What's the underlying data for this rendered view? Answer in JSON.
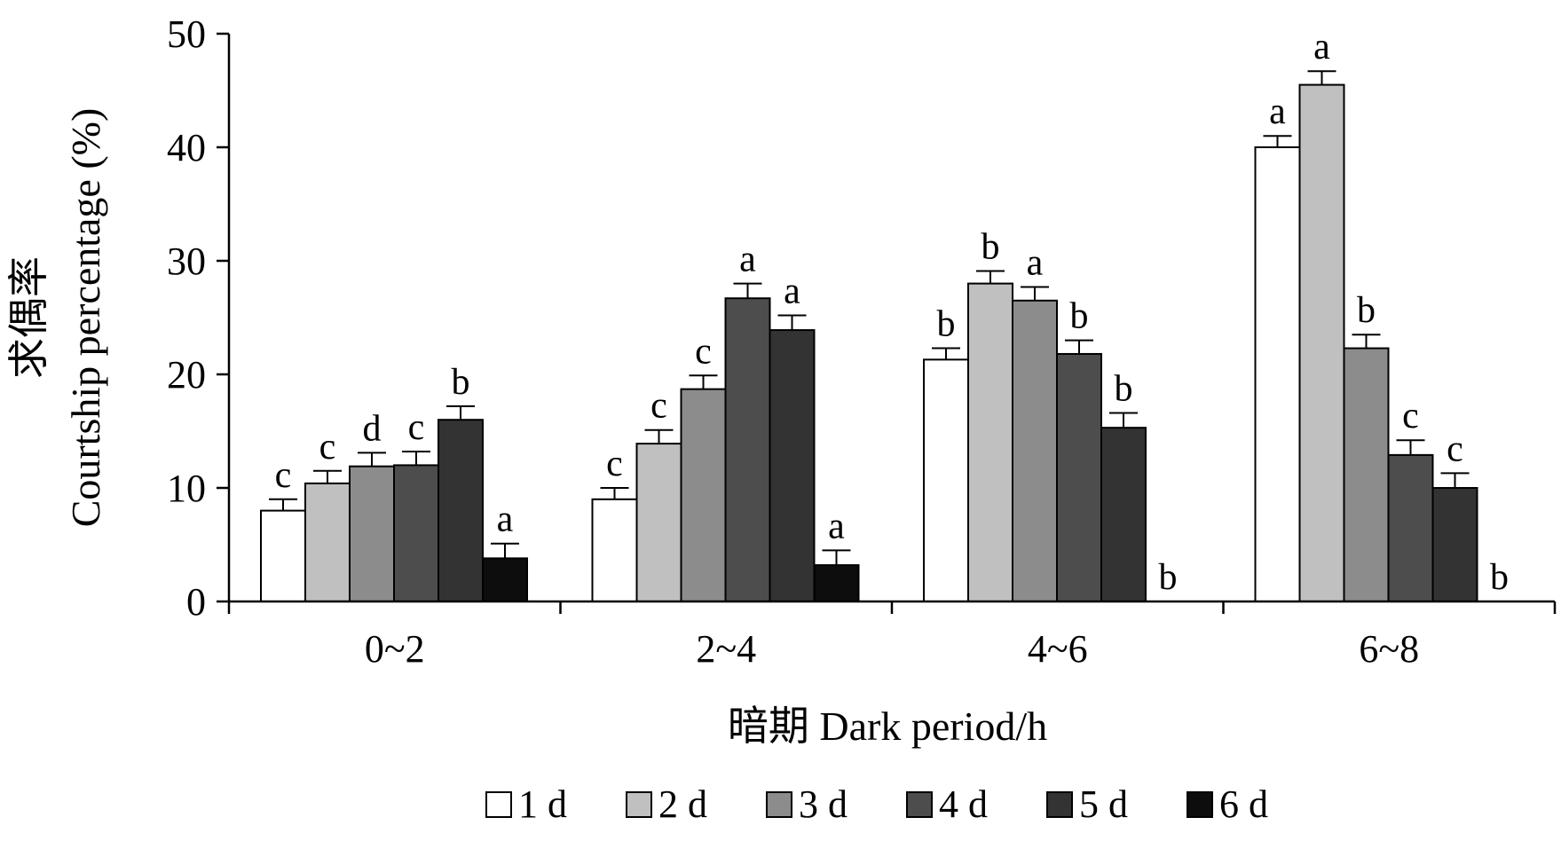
{
  "chart_data": {
    "type": "bar",
    "title": "",
    "xlabel": "暗期  Dark period/h",
    "ylabel_cn": "求偶率",
    "ylabel": "Courtship percentage (%)",
    "ylim": [
      0,
      50
    ],
    "yticks": [
      "0",
      "10",
      "20",
      "30",
      "40",
      "50"
    ],
    "categories": [
      "0~2",
      "2~4",
      "4~6",
      "6~8"
    ],
    "legend_position": "bottom",
    "series": [
      {
        "name": "1 d",
        "color": "#ffffff",
        "values": [
          8,
          9,
          21.3,
          40
        ],
        "errors": [
          1.0,
          1.0,
          1.0,
          1.0
        ],
        "labels": [
          "c",
          "c",
          "b",
          "a"
        ]
      },
      {
        "name": "2 d",
        "color": "#c0c0c0",
        "values": [
          10.4,
          13.9,
          28,
          45.5
        ],
        "errors": [
          1.1,
          1.2,
          1.1,
          1.2
        ],
        "labels": [
          "c",
          "c",
          "b",
          "a"
        ]
      },
      {
        "name": "3 d",
        "color": "#8c8c8c",
        "values": [
          11.9,
          18.7,
          26.5,
          22.3
        ],
        "errors": [
          1.2,
          1.2,
          1.2,
          1.2
        ],
        "labels": [
          "d",
          "c",
          "a",
          "b"
        ]
      },
      {
        "name": "4 d",
        "color": "#4d4d4d",
        "values": [
          12,
          26.7,
          21.8,
          12.9
        ],
        "errors": [
          1.2,
          1.3,
          1.2,
          1.3
        ],
        "labels": [
          "c",
          "a",
          "b",
          "c"
        ]
      },
      {
        "name": "5 d",
        "color": "#333333",
        "values": [
          16,
          23.9,
          15.3,
          10
        ],
        "errors": [
          1.2,
          1.3,
          1.3,
          1.3
        ],
        "labels": [
          "b",
          "a",
          "b",
          "c"
        ]
      },
      {
        "name": "6 d",
        "color": "#0d0d0d",
        "values": [
          3.8,
          3.2,
          0,
          0
        ],
        "errors": [
          1.3,
          1.3,
          0,
          0
        ],
        "labels": [
          "a",
          "a",
          "b",
          "b"
        ]
      }
    ]
  }
}
